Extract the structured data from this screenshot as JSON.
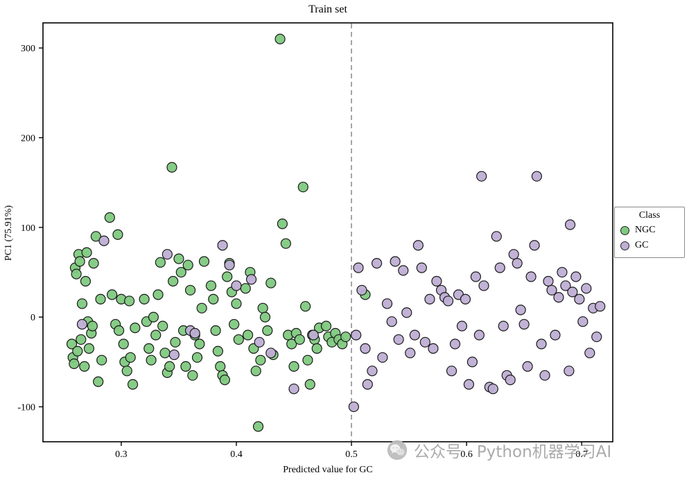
{
  "title": "Train set",
  "xlabel": "Predicted value for GC",
  "ylabel": "PC1 (75.91%)",
  "legend": {
    "title": "Class",
    "entries": [
      {
        "label": "NGC",
        "color": "#7fc97f"
      },
      {
        "label": "GC",
        "color": "#beaed4"
      }
    ]
  },
  "watermark": {
    "icon": "wechat-icon",
    "text": "公众号 · Python机器学习AI"
  },
  "colors": {
    "ngc": "#7fc97f",
    "gc": "#beaed4",
    "marker_edge": "#1a1a1a",
    "frame": "#000000",
    "dashed_line": "#9a9a9a",
    "watermark": "#a6a6a6"
  },
  "chart_data": {
    "type": "scatter",
    "title": "Train set",
    "xlabel": "Predicted value for GC",
    "ylabel": "PC1 (75.91%)",
    "xlim": [
      0.232,
      0.727
    ],
    "ylim": [
      -139,
      328
    ],
    "x_ticks": [
      0.3,
      0.4,
      0.5,
      0.6,
      0.7
    ],
    "y_ticks": [
      -100,
      0,
      100,
      200,
      300
    ],
    "grid": false,
    "legend_position": "right",
    "vline": {
      "x": 0.5,
      "style": "dashed",
      "color": "#9a9a9a"
    },
    "series": [
      {
        "name": "NGC",
        "color": "#7fc97f",
        "points": [
          [
            0.257,
            -30
          ],
          [
            0.258,
            -45
          ],
          [
            0.259,
            -52
          ],
          [
            0.26,
            55
          ],
          [
            0.261,
            48
          ],
          [
            0.262,
            -38
          ],
          [
            0.263,
            70
          ],
          [
            0.264,
            62
          ],
          [
            0.265,
            -25
          ],
          [
            0.266,
            15
          ],
          [
            0.268,
            -55
          ],
          [
            0.269,
            40
          ],
          [
            0.27,
            72
          ],
          [
            0.271,
            -5
          ],
          [
            0.272,
            -35
          ],
          [
            0.274,
            -18
          ],
          [
            0.275,
            -10
          ],
          [
            0.276,
            60
          ],
          [
            0.278,
            90
          ],
          [
            0.28,
            -72
          ],
          [
            0.282,
            20
          ],
          [
            0.283,
            -48
          ],
          [
            0.29,
            111
          ],
          [
            0.292,
            25
          ],
          [
            0.295,
            -8
          ],
          [
            0.297,
            92
          ],
          [
            0.298,
            -15
          ],
          [
            0.3,
            20
          ],
          [
            0.302,
            -30
          ],
          [
            0.303,
            -50
          ],
          [
            0.305,
            -60
          ],
          [
            0.307,
            18
          ],
          [
            0.308,
            -45
          ],
          [
            0.31,
            -75
          ],
          [
            0.312,
            -12
          ],
          [
            0.32,
            20
          ],
          [
            0.322,
            -5
          ],
          [
            0.324,
            -35
          ],
          [
            0.326,
            -48
          ],
          [
            0.328,
            0
          ],
          [
            0.33,
            -20
          ],
          [
            0.332,
            25
          ],
          [
            0.334,
            61
          ],
          [
            0.336,
            -10
          ],
          [
            0.338,
            -40
          ],
          [
            0.34,
            -62
          ],
          [
            0.342,
            -55
          ],
          [
            0.344,
            167
          ],
          [
            0.345,
            40
          ],
          [
            0.347,
            -28
          ],
          [
            0.35,
            65
          ],
          [
            0.352,
            50
          ],
          [
            0.354,
            -15
          ],
          [
            0.356,
            -55
          ],
          [
            0.358,
            58
          ],
          [
            0.36,
            30
          ],
          [
            0.362,
            -65
          ],
          [
            0.364,
            -20
          ],
          [
            0.366,
            -45
          ],
          [
            0.368,
            -30
          ],
          [
            0.37,
            10
          ],
          [
            0.372,
            62
          ],
          [
            0.378,
            35
          ],
          [
            0.38,
            20
          ],
          [
            0.382,
            -15
          ],
          [
            0.384,
            -38
          ],
          [
            0.386,
            -55
          ],
          [
            0.388,
            -65
          ],
          [
            0.39,
            -70
          ],
          [
            0.392,
            45
          ],
          [
            0.394,
            60
          ],
          [
            0.396,
            28
          ],
          [
            0.398,
            -8
          ],
          [
            0.4,
            15
          ],
          [
            0.402,
            -25
          ],
          [
            0.408,
            32
          ],
          [
            0.41,
            -20
          ],
          [
            0.412,
            50
          ],
          [
            0.415,
            -35
          ],
          [
            0.417,
            -60
          ],
          [
            0.419,
            -122
          ],
          [
            0.421,
            -48
          ],
          [
            0.423,
            10
          ],
          [
            0.425,
            0
          ],
          [
            0.427,
            -15
          ],
          [
            0.43,
            38
          ],
          [
            0.432,
            -42
          ],
          [
            0.438,
            310
          ],
          [
            0.44,
            104
          ],
          [
            0.443,
            82
          ],
          [
            0.445,
            -20
          ],
          [
            0.448,
            -30
          ],
          [
            0.45,
            -55
          ],
          [
            0.452,
            -18
          ],
          [
            0.455,
            -25
          ],
          [
            0.458,
            145
          ],
          [
            0.46,
            12
          ],
          [
            0.462,
            -48
          ],
          [
            0.464,
            -75
          ],
          [
            0.466,
            -20
          ],
          [
            0.468,
            -25
          ],
          [
            0.47,
            -35
          ],
          [
            0.472,
            -12
          ],
          [
            0.478,
            -10
          ],
          [
            0.48,
            -22
          ],
          [
            0.483,
            -28
          ],
          [
            0.486,
            -18
          ],
          [
            0.489,
            -25
          ],
          [
            0.492,
            -30
          ],
          [
            0.495,
            -22
          ],
          [
            0.512,
            25
          ]
        ]
      },
      {
        "name": "GC",
        "color": "#beaed4",
        "points": [
          [
            0.266,
            -8
          ],
          [
            0.285,
            85
          ],
          [
            0.34,
            70
          ],
          [
            0.346,
            -42
          ],
          [
            0.36,
            -15
          ],
          [
            0.364,
            -18
          ],
          [
            0.388,
            80
          ],
          [
            0.394,
            58
          ],
          [
            0.4,
            35
          ],
          [
            0.413,
            42
          ],
          [
            0.42,
            -28
          ],
          [
            0.43,
            -40
          ],
          [
            0.45,
            -80
          ],
          [
            0.467,
            -20
          ],
          [
            0.502,
            -100
          ],
          [
            0.504,
            -20
          ],
          [
            0.506,
            55
          ],
          [
            0.509,
            30
          ],
          [
            0.512,
            -35
          ],
          [
            0.514,
            -75
          ],
          [
            0.518,
            -60
          ],
          [
            0.522,
            60
          ],
          [
            0.527,
            -45
          ],
          [
            0.531,
            15
          ],
          [
            0.535,
            -5
          ],
          [
            0.538,
            62
          ],
          [
            0.541,
            -25
          ],
          [
            0.545,
            52
          ],
          [
            0.548,
            5
          ],
          [
            0.551,
            -40
          ],
          [
            0.555,
            -20
          ],
          [
            0.558,
            80
          ],
          [
            0.561,
            55
          ],
          [
            0.564,
            -28
          ],
          [
            0.568,
            20
          ],
          [
            0.571,
            -35
          ],
          [
            0.574,
            40
          ],
          [
            0.578,
            30
          ],
          [
            0.581,
            22
          ],
          [
            0.584,
            18
          ],
          [
            0.587,
            -60
          ],
          [
            0.59,
            -30
          ],
          [
            0.593,
            25
          ],
          [
            0.596,
            -10
          ],
          [
            0.599,
            20
          ],
          [
            0.602,
            -75
          ],
          [
            0.605,
            -50
          ],
          [
            0.608,
            45
          ],
          [
            0.611,
            -20
          ],
          [
            0.613,
            157
          ],
          [
            0.615,
            35
          ],
          [
            0.62,
            -78
          ],
          [
            0.623,
            -80
          ],
          [
            0.626,
            90
          ],
          [
            0.629,
            55
          ],
          [
            0.632,
            -10
          ],
          [
            0.635,
            -65
          ],
          [
            0.638,
            -70
          ],
          [
            0.641,
            70
          ],
          [
            0.644,
            60
          ],
          [
            0.647,
            8
          ],
          [
            0.65,
            -8
          ],
          [
            0.653,
            -55
          ],
          [
            0.656,
            45
          ],
          [
            0.659,
            80
          ],
          [
            0.661,
            157
          ],
          [
            0.665,
            -30
          ],
          [
            0.668,
            -65
          ],
          [
            0.671,
            40
          ],
          [
            0.674,
            30
          ],
          [
            0.677,
            -20
          ],
          [
            0.68,
            22
          ],
          [
            0.683,
            50
          ],
          [
            0.686,
            35
          ],
          [
            0.689,
            -60
          ],
          [
            0.69,
            103
          ],
          [
            0.692,
            28
          ],
          [
            0.695,
            45
          ],
          [
            0.698,
            20
          ],
          [
            0.701,
            -5
          ],
          [
            0.704,
            32
          ],
          [
            0.707,
            -40
          ],
          [
            0.71,
            10
          ],
          [
            0.713,
            -22
          ],
          [
            0.716,
            12
          ]
        ]
      }
    ]
  }
}
